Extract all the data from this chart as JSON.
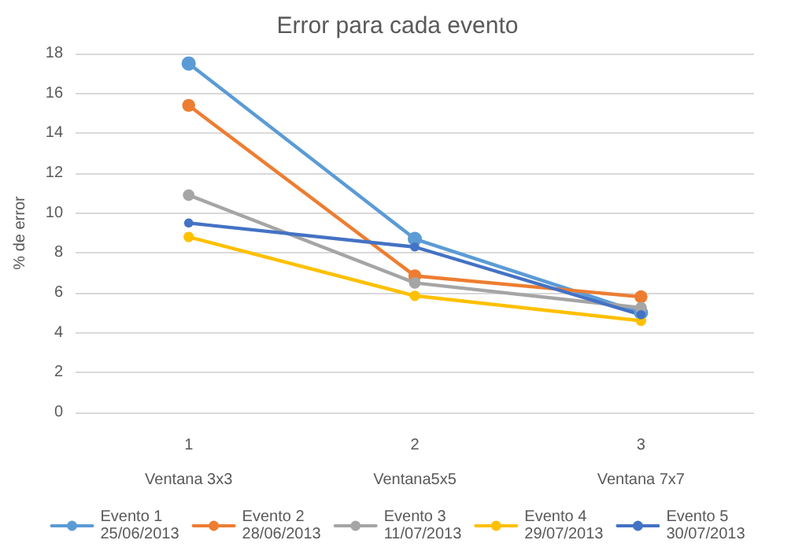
{
  "chart_data": {
    "type": "line",
    "title": "Error para cada evento",
    "ylabel": "% de error",
    "categories": [
      "1\nVentana 3x3",
      "2\nVentana5x5",
      "3\nVentana 7x7"
    ],
    "series": [
      {
        "name": "Evento 1\n25/06/2013",
        "color": "#5b9bd5",
        "values": [
          17.5,
          8.7,
          5.0
        ]
      },
      {
        "name": "Evento 2\n28/06/2013",
        "color": "#ed7d31",
        "values": [
          15.4,
          6.85,
          5.8
        ]
      },
      {
        "name": "Evento 3\n11/07/2013",
        "color": "#a5a5a5",
        "values": [
          10.9,
          6.5,
          5.25
        ]
      },
      {
        "name": "Evento 4\n29/07/2013",
        "color": "#ffc000",
        "values": [
          8.8,
          5.85,
          4.6
        ]
      },
      {
        "name": "Evento 5\n30/07/2013",
        "color": "#4472c4",
        "values": [
          9.5,
          8.3,
          4.9
        ]
      }
    ],
    "ylim": [
      0,
      18
    ],
    "yticks": [
      0,
      2,
      4,
      6,
      8,
      10,
      12,
      14,
      16,
      18
    ],
    "grid": "y",
    "legend": "bottom",
    "marker": "circle",
    "line_style": "solid"
  }
}
